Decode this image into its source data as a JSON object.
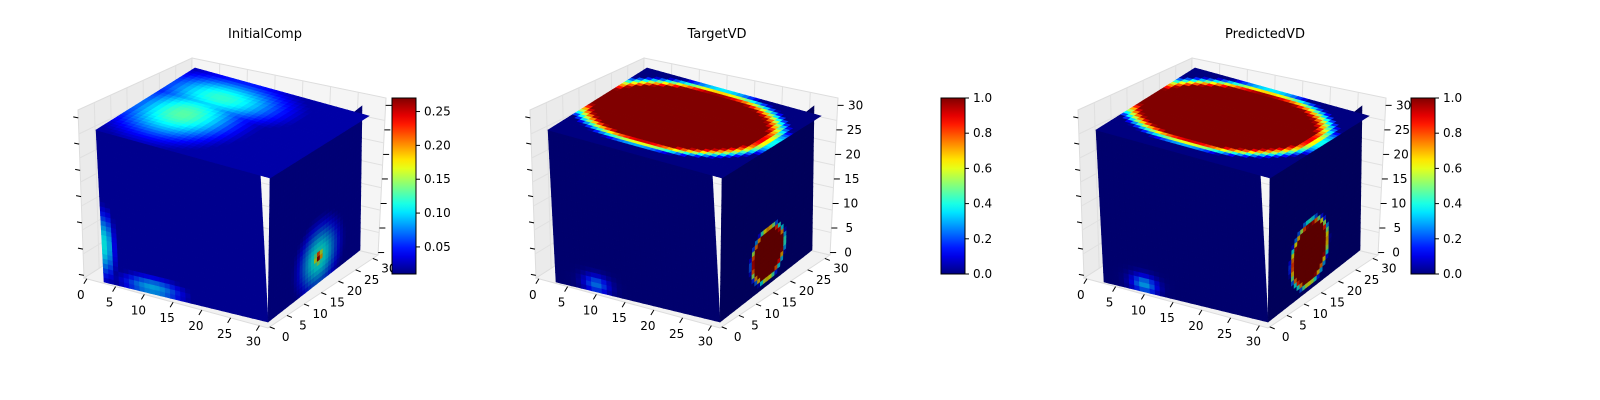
{
  "chart_data": [
    {
      "type": "voxel-3d",
      "title": "InitialComp",
      "colormap": "jet",
      "x_ticks": [
        "0",
        "5",
        "10",
        "15",
        "20",
        "25",
        "30"
      ],
      "y_ticks": [
        "0",
        "5",
        "10",
        "15",
        "20",
        "25",
        "30"
      ],
      "z_ticks": [],
      "xlim": [
        0,
        32
      ],
      "ylim": [
        0,
        32
      ],
      "zlim": [
        0,
        32
      ],
      "colorbar": {
        "ticks": [
          "0.05",
          "0.10",
          "0.15",
          "0.20",
          "0.25"
        ],
        "tick_values": [
          0.05,
          0.1,
          0.15,
          0.2,
          0.25
        ],
        "range": [
          0.01,
          0.27
        ]
      },
      "field": {
        "background": 0.02,
        "top_blobs": [
          {
            "u": 0.25,
            "v": 0.45,
            "su": 0.3,
            "sv": 0.35,
            "value": 0.13
          },
          {
            "u": 0.3,
            "v": 0.75,
            "su": 0.35,
            "sv": 0.25,
            "value": 0.12
          }
        ],
        "front_blobs": [
          {
            "u": 0.02,
            "v": 0.25,
            "su": 0.06,
            "sv": 0.22,
            "value": 0.11
          },
          {
            "u": 0.3,
            "v": 0.04,
            "su": 0.2,
            "sv": 0.08,
            "value": 0.09
          }
        ],
        "side_blobs": [
          {
            "u": 0.55,
            "v": 0.18,
            "su": 0.22,
            "sv": 0.22,
            "value": 0.12
          },
          {
            "u": 0.55,
            "v": 0.18,
            "su": 0.05,
            "sv": 0.05,
            "value": 0.27
          }
        ]
      }
    },
    {
      "type": "voxel-3d",
      "title": "TargetVD",
      "colormap": "jet",
      "x_ticks": [
        "0",
        "5",
        "10",
        "15",
        "20",
        "25",
        "30"
      ],
      "y_ticks": [
        "0",
        "5",
        "10",
        "15",
        "20",
        "25",
        "30"
      ],
      "z_ticks": [
        "0",
        "5",
        "10",
        "15",
        "20",
        "25",
        "30"
      ],
      "xlim": [
        0,
        32
      ],
      "ylim": [
        0,
        32
      ],
      "zlim": [
        0,
        32
      ],
      "colorbar": {
        "ticks": [
          "0.0",
          "0.2",
          "0.4",
          "0.6",
          "0.8",
          "1.0"
        ],
        "tick_values": [
          0.0,
          0.2,
          0.4,
          0.6,
          0.8,
          1.0
        ],
        "range": [
          0.0,
          1.0
        ]
      },
      "field": {
        "background": 0.0,
        "top_region": {
          "u": 0.45,
          "v": 0.55,
          "ru": 0.52,
          "rv": 0.42,
          "value": 1.0
        },
        "front_blobs": [
          {
            "u": 0.25,
            "v": 0.05,
            "su": 0.08,
            "sv": 0.06,
            "value": 0.25
          }
        ],
        "side_region": {
          "u": 0.52,
          "v": 0.22,
          "ru": 0.18,
          "rv": 0.18,
          "value": 1.0
        }
      }
    },
    {
      "type": "voxel-3d",
      "title": "PredictedVD",
      "colormap": "jet",
      "x_ticks": [
        "0",
        "5",
        "10",
        "15",
        "20",
        "25",
        "30"
      ],
      "y_ticks": [
        "0",
        "5",
        "10",
        "15",
        "20",
        "25",
        "30"
      ],
      "z_ticks": [
        "0",
        "5",
        "10",
        "15",
        "20",
        "25",
        "30"
      ],
      "xlim": [
        0,
        32
      ],
      "ylim": [
        0,
        32
      ],
      "zlim": [
        0,
        32
      ],
      "colorbar": {
        "ticks": [
          "0.0",
          "0.2",
          "0.4",
          "0.6",
          "0.8",
          "1.0"
        ],
        "tick_values": [
          0.0,
          0.2,
          0.4,
          0.6,
          0.8,
          1.0
        ],
        "range": [
          0.0,
          1.0
        ]
      },
      "field": {
        "background": 0.0,
        "top_region": {
          "u": 0.45,
          "v": 0.55,
          "ru": 0.52,
          "rv": 0.42,
          "value": 1.0
        },
        "front_blobs": [
          {
            "u": 0.25,
            "v": 0.05,
            "su": 0.08,
            "sv": 0.06,
            "value": 0.3
          }
        ],
        "side_region": {
          "u": 0.45,
          "v": 0.26,
          "ru": 0.2,
          "rv": 0.22,
          "value": 1.0
        }
      }
    }
  ]
}
